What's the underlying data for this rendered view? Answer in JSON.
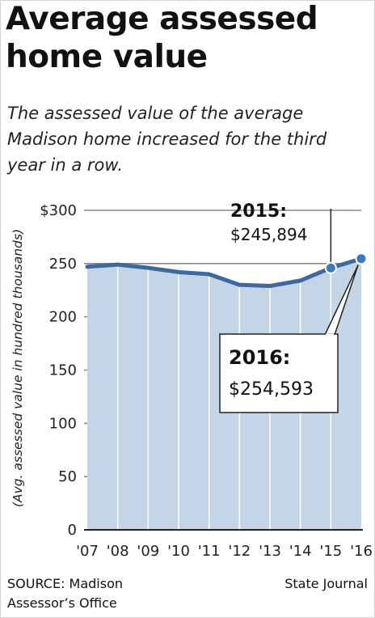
{
  "chart_data": {
    "type": "area",
    "title": "Average assessed home value",
    "subtitle": "The assessed value of the average Madison home increased for the third year in a row.",
    "ylabel": "(Avg. assessed value in hundred thousands)",
    "xlabel": "",
    "x": [
      "'07",
      "'08",
      "'09",
      "'10",
      "'11",
      "'12",
      "'13",
      "'14",
      "'15",
      "'16"
    ],
    "values": [
      247,
      249,
      246,
      242,
      240,
      230,
      229,
      234,
      245.894,
      254.593
    ],
    "ylim": [
      0,
      300
    ],
    "yticks": [
      0,
      50,
      100,
      150,
      200,
      250,
      300
    ],
    "ytick_labels": [
      "0",
      "50",
      "100",
      "150",
      "200",
      "250",
      "$300"
    ],
    "grid": true,
    "annotations": [
      {
        "year": "2015:",
        "value": "$245,894",
        "index": 8
      },
      {
        "year": "2016:",
        "value": "$254,593",
        "index": 9
      }
    ],
    "colors": {
      "line": "#3d6a9e",
      "fill": "#c5d5e8",
      "grid": "#8b8b8b",
      "marker": "#3f7ab8"
    }
  },
  "footer": {
    "source_line1": "SOURCE: Madison",
    "source_line2": "Assessor’s Office",
    "credit": "State Journal"
  }
}
